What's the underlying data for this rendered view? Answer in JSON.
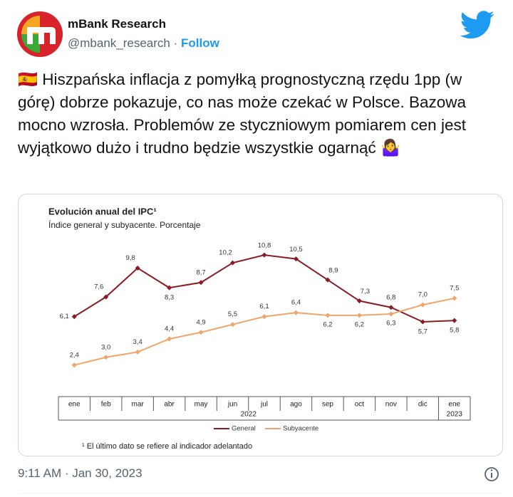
{
  "tweet": {
    "name": "mBank Research",
    "handle": "@mbank_research",
    "separator": "·",
    "follow": "Follow",
    "text": "🇪🇸 Hiszpańska inflacja z pomyłką prognostyczną rzędu 1pp (w górę) dobrze pokazuje, co nas może czekać w Polsce. Bazowa mocno wzrosła. Problemów ze styczniowym pomiarem cen jest wyjątkowo dużo i trudno będzie wszystkie ogarnąć 🤷‍♀️",
    "timestamp": "9:11 AM · Jan 30, 2023"
  },
  "chart_data": {
    "type": "line",
    "title": "Evolución anual del IPC¹",
    "subtitle": "Índice general y subyacente. Porcentaje",
    "categories": [
      "ene",
      "feb",
      "mar",
      "abr",
      "may",
      "jun",
      "jul",
      "ago",
      "sep",
      "oct",
      "nov",
      "dic",
      "ene"
    ],
    "year_labels": [
      "2022",
      "2023"
    ],
    "ylim": [
      0,
      12
    ],
    "series": [
      {
        "name": "General",
        "color": "#8b1c24",
        "values": [
          6.1,
          7.6,
          9.8,
          8.3,
          8.7,
          10.2,
          10.8,
          10.5,
          8.9,
          7.3,
          6.8,
          5.7,
          5.8
        ],
        "value_labels": [
          "6,1",
          "7,6",
          "9,8",
          "8,3",
          "8,7",
          "10,2",
          "10,8",
          "10,5",
          "8,9",
          "7,3",
          "6,8",
          "5,7",
          "5,8"
        ]
      },
      {
        "name": "Subyacente",
        "color": "#f0a56a",
        "values": [
          2.4,
          3.0,
          3.4,
          4.4,
          4.9,
          5.5,
          6.1,
          6.4,
          6.2,
          6.2,
          6.3,
          7.0,
          7.5
        ],
        "value_labels": [
          "2,4",
          "3,0",
          "3,4",
          "4,4",
          "4,9",
          "5,5",
          "6,1",
          "6,4",
          "6,2",
          "6,2",
          "6,3",
          "7,0",
          "7,5"
        ]
      }
    ],
    "footnote": "¹ El último dato se refiere al indicador adelantado"
  }
}
